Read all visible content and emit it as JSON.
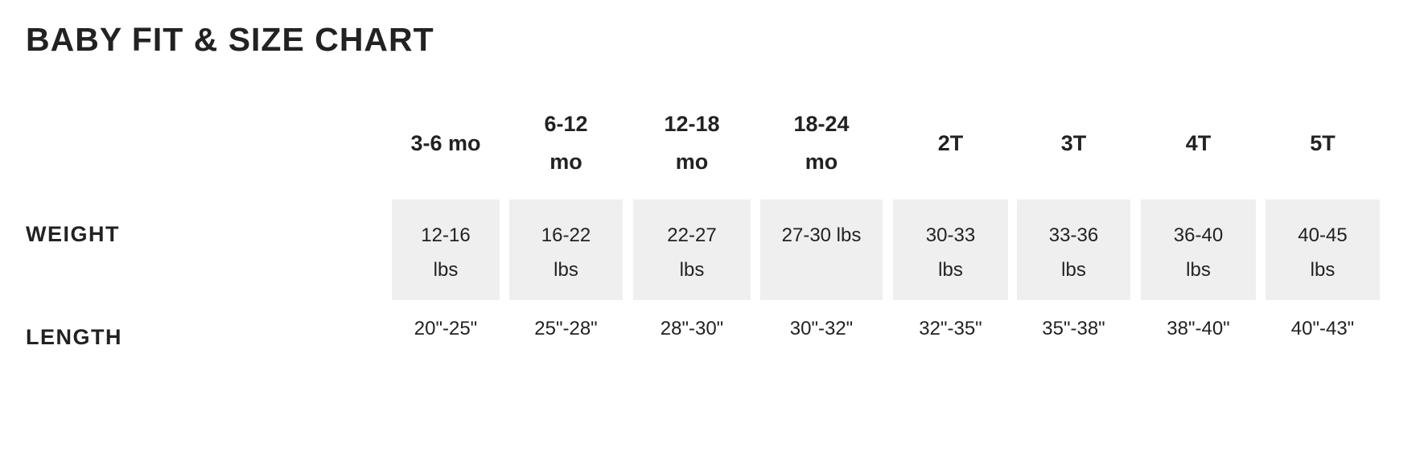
{
  "title": "BABY FIT & SIZE CHART",
  "row_labels": {
    "weight": "WEIGHT",
    "length": "LENGTH"
  },
  "colors": {
    "text": "#222222",
    "cell_background": "#efefef"
  },
  "columns": [
    {
      "size": "3-6 mo",
      "weight": "12-16 lbs",
      "length": "20\"-25\""
    },
    {
      "size": "6-12 mo",
      "weight": "16-22 lbs",
      "length": "25\"-28\""
    },
    {
      "size": "12-18 mo",
      "weight": "22-27 lbs",
      "length": "28\"-30\""
    },
    {
      "size": "18-24 mo",
      "weight": "27-30 lbs",
      "length": "30\"-32\""
    },
    {
      "size": "2T",
      "weight": "30-33 lbs",
      "length": "32\"-35\""
    },
    {
      "size": "3T",
      "weight": "33-36 lbs",
      "length": "35\"-38\""
    },
    {
      "size": "4T",
      "weight": "36-40 lbs",
      "length": "38\"-40\""
    },
    {
      "size": "5T",
      "weight": "40-45 lbs",
      "length": "40\"-43\""
    }
  ]
}
